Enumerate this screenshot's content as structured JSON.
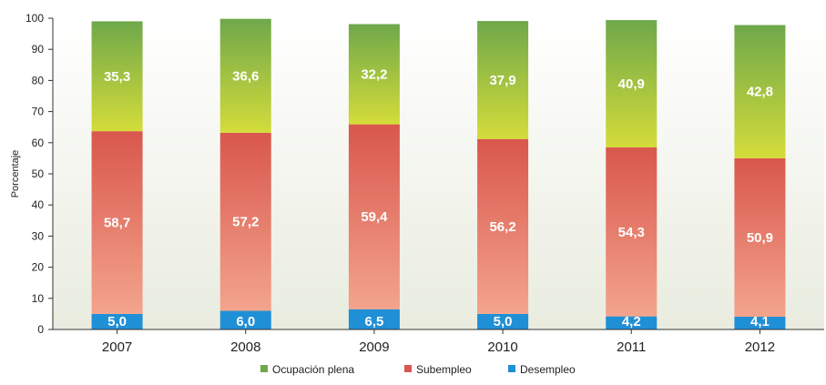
{
  "chart_data": {
    "type": "bar",
    "stacked": true,
    "categories": [
      "2007",
      "2008",
      "2009",
      "2010",
      "2011",
      "2012"
    ],
    "series": [
      {
        "name": "Desempleo",
        "values": [
          5.0,
          6.0,
          6.5,
          5.0,
          4.2,
          4.1
        ],
        "labels": [
          "5,0",
          "6,0",
          "6,5",
          "5,0",
          "4,2",
          "4,1"
        ],
        "color": "#1f8fd6"
      },
      {
        "name": "Subempleo",
        "values": [
          58.7,
          57.2,
          59.4,
          56.2,
          54.3,
          50.9
        ],
        "labels": [
          "58,7",
          "57,2",
          "59,4",
          "56,2",
          "54,3",
          "50,9"
        ],
        "color": "#d9574d",
        "color_light": "#f3a48c"
      },
      {
        "name": "Ocupación plena",
        "values": [
          35.3,
          36.6,
          32.2,
          37.9,
          40.9,
          42.8
        ],
        "labels": [
          "35,3",
          "36,6",
          "32,2",
          "37,9",
          "40,9",
          "42,8"
        ],
        "color": "#6fa84a",
        "color_light": "#d4dc3a"
      }
    ],
    "ylabel": "Porcentaje",
    "ylim": [
      0,
      100
    ],
    "yticks": [
      "0",
      "10",
      "20",
      "30",
      "40",
      "50",
      "60",
      "70",
      "80",
      "90",
      "100"
    ],
    "legend_position": "bottom",
    "legend_order": [
      "Ocupación plena",
      "Subempleo",
      "Desempleo"
    ],
    "background_gradient": [
      "#ffffff",
      "#e9ecdf"
    ]
  }
}
